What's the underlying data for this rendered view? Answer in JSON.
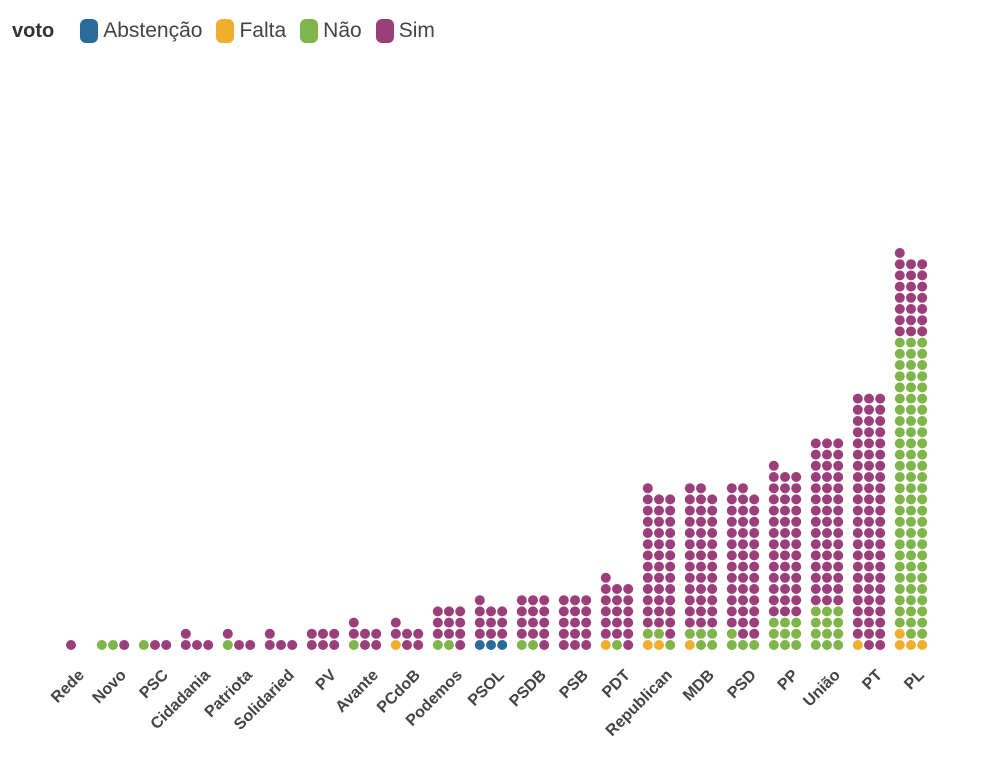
{
  "legend": {
    "title": "voto",
    "items": [
      {
        "label": "Abstenção",
        "color": "#2b6b9a"
      },
      {
        "label": "Falta",
        "color": "#f0ad2e"
      },
      {
        "label": "Não",
        "color": "#7fb54a"
      },
      {
        "label": "Sim",
        "color": "#9b3f7a"
      }
    ]
  },
  "chart_data": {
    "type": "dot",
    "field": "voto",
    "series_order": [
      "Abstenção",
      "Falta",
      "Não",
      "Sim"
    ],
    "series_colors": {
      "Abstenção": "#2b6b9a",
      "Falta": "#f0ad2e",
      "Não": "#7fb54a",
      "Sim": "#9b3f7a"
    },
    "categories": [
      {
        "party": "Rede",
        "counts": {
          "Abstenção": 0,
          "Falta": 0,
          "Não": 0,
          "Sim": 1
        }
      },
      {
        "party": "Novo",
        "counts": {
          "Abstenção": 0,
          "Falta": 0,
          "Não": 2,
          "Sim": 1
        }
      },
      {
        "party": "PSC",
        "counts": {
          "Abstenção": 0,
          "Falta": 0,
          "Não": 1,
          "Sim": 2
        }
      },
      {
        "party": "Cidadania",
        "counts": {
          "Abstenção": 0,
          "Falta": 0,
          "Não": 0,
          "Sim": 4
        }
      },
      {
        "party": "Patriota",
        "counts": {
          "Abstenção": 0,
          "Falta": 0,
          "Não": 1,
          "Sim": 3
        }
      },
      {
        "party": "Solidaried",
        "counts": {
          "Abstenção": 0,
          "Falta": 0,
          "Não": 0,
          "Sim": 4
        }
      },
      {
        "party": "PV",
        "counts": {
          "Abstenção": 0,
          "Falta": 0,
          "Não": 0,
          "Sim": 6
        }
      },
      {
        "party": "Avante",
        "counts": {
          "Abstenção": 0,
          "Falta": 0,
          "Não": 1,
          "Sim": 6
        }
      },
      {
        "party": "PCdoB",
        "counts": {
          "Abstenção": 0,
          "Falta": 1,
          "Não": 0,
          "Sim": 6
        }
      },
      {
        "party": "Podemos",
        "counts": {
          "Abstenção": 0,
          "Falta": 0,
          "Não": 2,
          "Sim": 10
        }
      },
      {
        "party": "PSOL",
        "counts": {
          "Abstenção": 3,
          "Falta": 0,
          "Não": 0,
          "Sim": 10
        }
      },
      {
        "party": "PSDB",
        "counts": {
          "Abstenção": 0,
          "Falta": 0,
          "Não": 2,
          "Sim": 13
        }
      },
      {
        "party": "PSB",
        "counts": {
          "Abstenção": 0,
          "Falta": 0,
          "Não": 0,
          "Sim": 15
        }
      },
      {
        "party": "PDT",
        "counts": {
          "Abstenção": 0,
          "Falta": 1,
          "Não": 1,
          "Sim": 17
        }
      },
      {
        "party": "Republican",
        "counts": {
          "Abstenção": 0,
          "Falta": 2,
          "Não": 3,
          "Sim": 38
        }
      },
      {
        "party": "MDB",
        "counts": {
          "Abstenção": 0,
          "Falta": 1,
          "Não": 5,
          "Sim": 38
        }
      },
      {
        "party": "PSD",
        "counts": {
          "Abstenção": 0,
          "Falta": 0,
          "Não": 4,
          "Sim": 40
        }
      },
      {
        "party": "PP",
        "counts": {
          "Abstenção": 0,
          "Falta": 0,
          "Não": 9,
          "Sim": 40
        }
      },
      {
        "party": "União",
        "counts": {
          "Abstenção": 0,
          "Falta": 0,
          "Não": 12,
          "Sim": 45
        }
      },
      {
        "party": "PT",
        "counts": {
          "Abstenção": 0,
          "Falta": 1,
          "Não": 0,
          "Sim": 68
        }
      },
      {
        "party": "PL",
        "counts": {
          "Abstenção": 0,
          "Falta": 4,
          "Não": 80,
          "Sim": 22
        }
      }
    ]
  }
}
